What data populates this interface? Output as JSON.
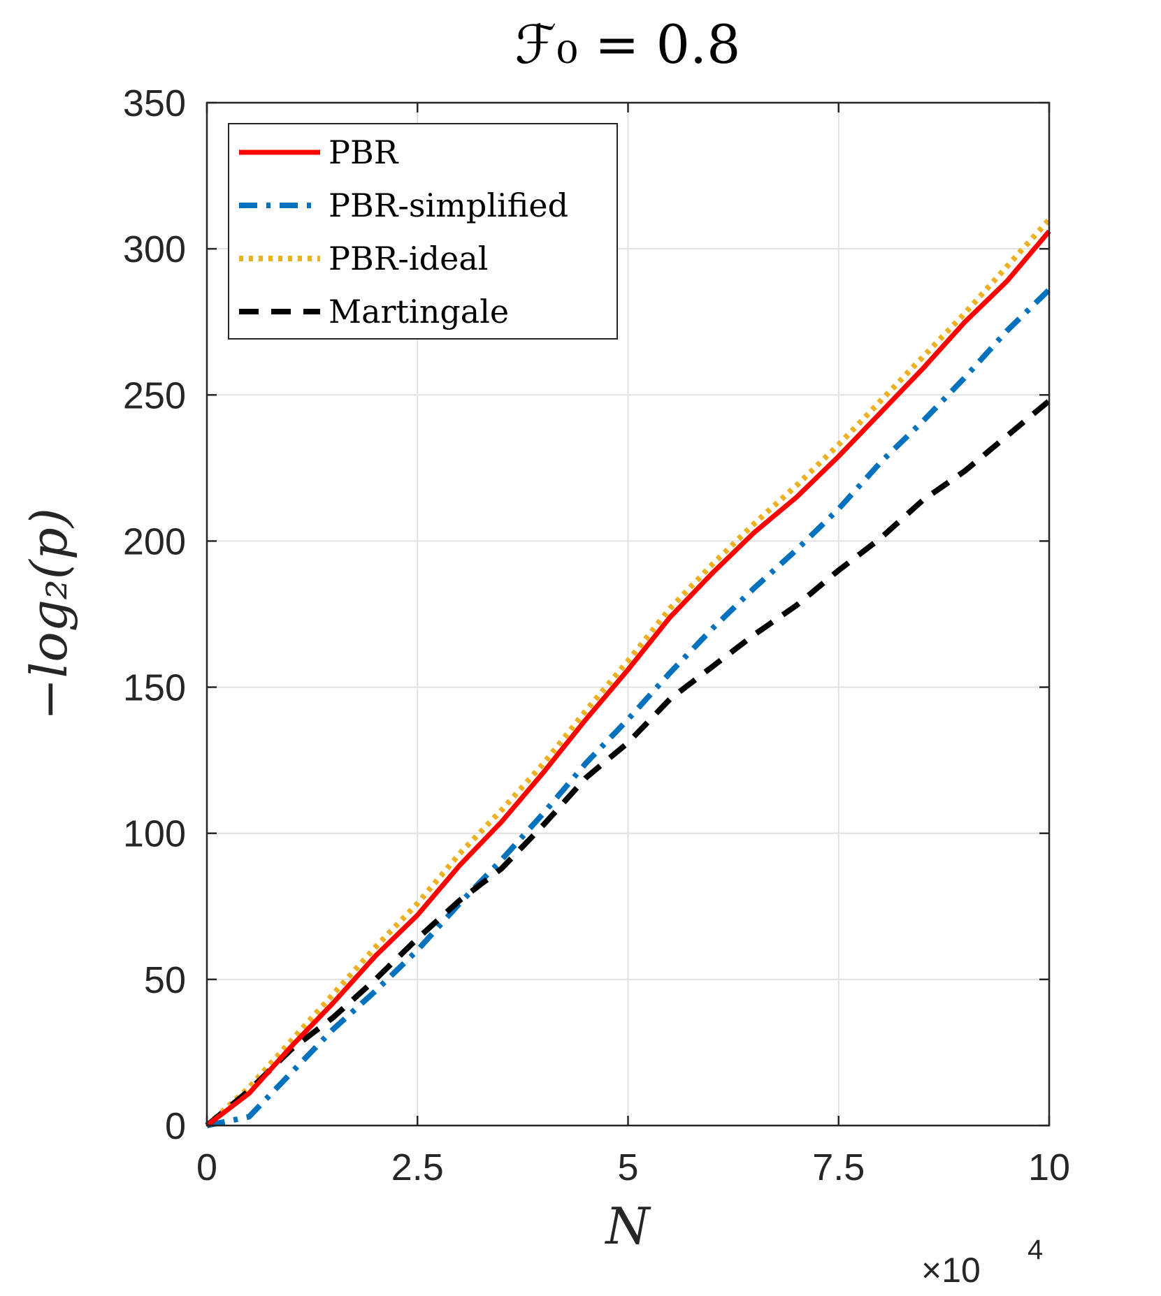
{
  "chart_data": {
    "type": "line",
    "title": "ℱ₀ = 0.8",
    "xlabel": "N",
    "ylabel": "−log₂(p)",
    "x_multiplier": "×10",
    "x_multiplier_exponent": "4",
    "xlim": [
      0,
      10
    ],
    "ylim": [
      0,
      350
    ],
    "xticks": [
      0,
      2.5,
      5,
      7.5,
      10
    ],
    "xtick_labels": [
      "0",
      "2.5",
      "5",
      "7.5",
      "10"
    ],
    "yticks": [
      0,
      50,
      100,
      150,
      200,
      250,
      300,
      350
    ],
    "ytick_labels": [
      "0",
      "50",
      "100",
      "150",
      "200",
      "250",
      "300",
      "350"
    ],
    "grid": true,
    "legend_position": "top-left",
    "x": [
      0,
      0.5,
      1,
      1.5,
      2,
      2.5,
      3,
      3.5,
      4,
      4.5,
      5,
      5.5,
      6,
      6.5,
      7,
      7.5,
      8,
      8.5,
      9,
      9.5,
      10
    ],
    "series": [
      {
        "name": "PBR",
        "color": "#ff0000",
        "style": "solid",
        "values": [
          0,
          11,
          27,
          42,
          58,
          72,
          89,
          104,
          121,
          139,
          156,
          174,
          189,
          203,
          215,
          229,
          244,
          259,
          275,
          289,
          306
        ]
      },
      {
        "name": "PBR-simplified",
        "color": "#0072bd",
        "style": "dashdot",
        "values": [
          0,
          3,
          18,
          33,
          46,
          60,
          76,
          91,
          107,
          124,
          139,
          155,
          170,
          184,
          197,
          211,
          227,
          241,
          256,
          272,
          286
        ]
      },
      {
        "name": "PBR-ideal",
        "color": "#edb120",
        "style": "dotted",
        "values": [
          0,
          13,
          29,
          45,
          61,
          76,
          93,
          108,
          124,
          142,
          159,
          177,
          192,
          206,
          219,
          233,
          248,
          263,
          278,
          294,
          310
        ]
      },
      {
        "name": "Martingale",
        "color": "#000000",
        "style": "dashed",
        "values": [
          0,
          12,
          26,
          37,
          50,
          64,
          77,
          88,
          103,
          119,
          131,
          146,
          157,
          168,
          178,
          190,
          201,
          214,
          224,
          236,
          248
        ]
      }
    ]
  }
}
